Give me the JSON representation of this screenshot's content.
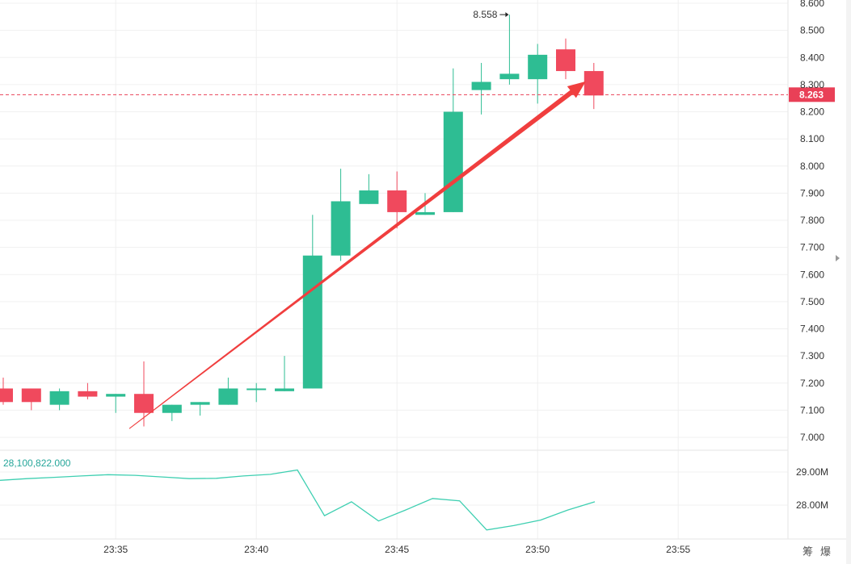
{
  "chart_data": [
    {
      "type": "candlestick",
      "title": "",
      "x_tick_labels": [
        "23:35",
        "23:40",
        "23:45",
        "23:50",
        "23:55"
      ],
      "x_ticks_minutes": [
        35,
        40,
        45,
        50,
        55
      ],
      "y_tick_labels": [
        "8.600",
        "8.500",
        "8.400",
        "8.300",
        "8.200",
        "8.100",
        "8.000",
        "7.900",
        "7.800",
        "7.700",
        "7.600",
        "7.500",
        "7.400",
        "7.300",
        "7.200",
        "7.100",
        "7.000"
      ],
      "ylim": [
        6.98,
        8.61
      ],
      "grid": true,
      "current_price": 8.263,
      "current_price_label": "8.263",
      "high_marker": {
        "value": 8.558,
        "label": "8.558"
      },
      "candles": [
        {
          "t": "23:31",
          "o": 7.18,
          "h": 7.22,
          "l": 7.12,
          "c": 7.13
        },
        {
          "t": "23:32",
          "o": 7.18,
          "h": 7.18,
          "l": 7.1,
          "c": 7.13
        },
        {
          "t": "23:33",
          "o": 7.12,
          "h": 7.18,
          "l": 7.1,
          "c": 7.17
        },
        {
          "t": "23:34",
          "o": 7.17,
          "h": 7.2,
          "l": 7.14,
          "c": 7.15
        },
        {
          "t": "23:35",
          "o": 7.15,
          "h": 7.16,
          "l": 7.09,
          "c": 7.16
        },
        {
          "t": "23:36",
          "o": 7.16,
          "h": 7.28,
          "l": 7.04,
          "c": 7.09
        },
        {
          "t": "23:37",
          "o": 7.09,
          "h": 7.12,
          "l": 7.06,
          "c": 7.12
        },
        {
          "t": "23:38",
          "o": 7.12,
          "h": 7.13,
          "l": 7.08,
          "c": 7.13
        },
        {
          "t": "23:39",
          "o": 7.12,
          "h": 7.22,
          "l": 7.12,
          "c": 7.18
        },
        {
          "t": "23:40",
          "o": 7.18,
          "h": 7.2,
          "l": 7.13,
          "c": 7.18
        },
        {
          "t": "23:41",
          "o": 7.17,
          "h": 7.3,
          "l": 7.17,
          "c": 7.18
        },
        {
          "t": "23:42",
          "o": 7.18,
          "h": 7.82,
          "l": 7.18,
          "c": 7.67
        },
        {
          "t": "23:43",
          "o": 7.67,
          "h": 7.99,
          "l": 7.65,
          "c": 7.87
        },
        {
          "t": "23:44",
          "o": 7.86,
          "h": 7.97,
          "l": 7.86,
          "c": 7.91
        },
        {
          "t": "23:45",
          "o": 7.91,
          "h": 7.98,
          "l": 7.77,
          "c": 7.83
        },
        {
          "t": "23:46",
          "o": 7.82,
          "h": 7.9,
          "l": 7.82,
          "c": 7.83
        },
        {
          "t": "23:47",
          "o": 7.83,
          "h": 8.36,
          "l": 7.83,
          "c": 8.2
        },
        {
          "t": "23:48",
          "o": 8.28,
          "h": 8.38,
          "l": 8.19,
          "c": 8.31
        },
        {
          "t": "23:49",
          "o": 8.32,
          "h": 8.558,
          "l": 8.3,
          "c": 8.34
        },
        {
          "t": "23:50",
          "o": 8.32,
          "h": 8.45,
          "l": 8.23,
          "c": 8.41
        },
        {
          "t": "23:51",
          "o": 8.43,
          "h": 8.47,
          "l": 8.32,
          "c": 8.35
        },
        {
          "t": "23:52",
          "o": 8.35,
          "h": 8.38,
          "l": 8.21,
          "c": 8.26
        }
      ],
      "annotation": {
        "type": "arrow",
        "color": "#f03e3e",
        "from": {
          "t": "23:36",
          "p": 7.05
        },
        "to": {
          "t": "23:52",
          "p": 8.3
        }
      }
    },
    {
      "type": "line",
      "series_label": "28,100,822.000",
      "y_tick_labels": [
        "29.00M",
        "28.00M"
      ],
      "y_ticks": [
        29000000,
        28000000
      ],
      "ylim": [
        27500000,
        29950000
      ],
      "values": [
        28750000,
        28800000,
        28840000,
        28880000,
        28920000,
        28900000,
        28850000,
        28800000,
        28810000,
        28880000,
        28930000,
        29060000,
        27680000,
        28100000,
        27520000,
        27850000,
        28200000,
        28130000,
        27250000,
        27380000,
        27550000,
        27850000,
        28100000
      ]
    }
  ],
  "colors": {
    "up": "#2ebd93",
    "down": "#f0495d",
    "arrow": "#f03e3e",
    "line": "#3ecfb1",
    "grid": "#f0f0f0",
    "price_line": "#e94057"
  },
  "footer_labels": [
    "筹",
    "爆"
  ]
}
